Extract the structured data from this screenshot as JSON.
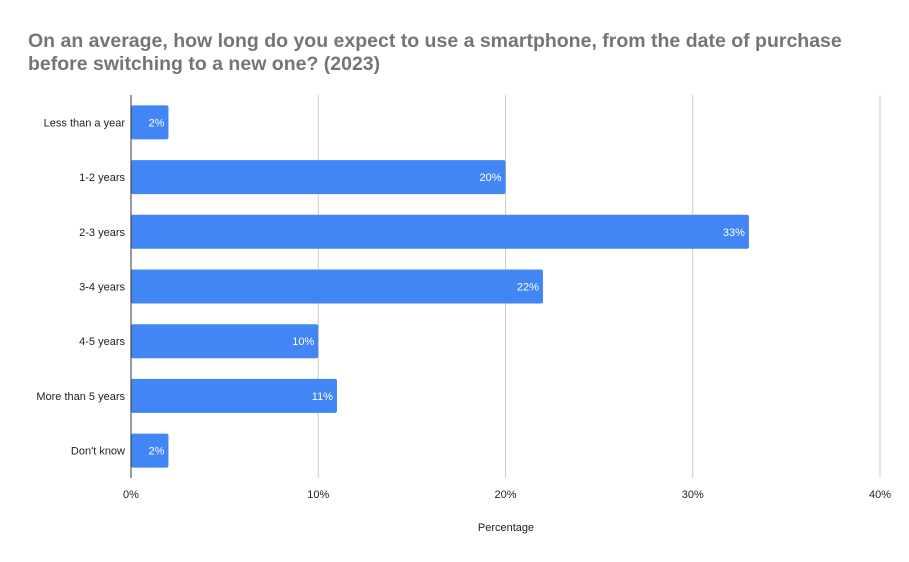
{
  "chart_data": {
    "type": "bar",
    "orientation": "horizontal",
    "title": "On an average, how long do you expect to use a smartphone, from the date of purchase before switching to a new one? (2023)",
    "xlabel": "Percentage",
    "ylabel": "",
    "categories": [
      "Less than a year",
      "1-2 years",
      "2-3 years",
      "3-4 years",
      "4-5 years",
      "More than 5 years",
      "Don't know"
    ],
    "values": [
      2,
      20,
      33,
      22,
      10,
      11,
      2
    ],
    "data_labels": [
      "2%",
      "20%",
      "33%",
      "22%",
      "10%",
      "11%",
      "2%"
    ],
    "xlim": [
      0,
      40
    ],
    "xticks": [
      0,
      10,
      20,
      30,
      40
    ],
    "xtick_labels": [
      "0%",
      "10%",
      "20%",
      "30%",
      "40%"
    ],
    "grid": true,
    "bar_color": "#4285f4",
    "title_color": "#757575"
  }
}
